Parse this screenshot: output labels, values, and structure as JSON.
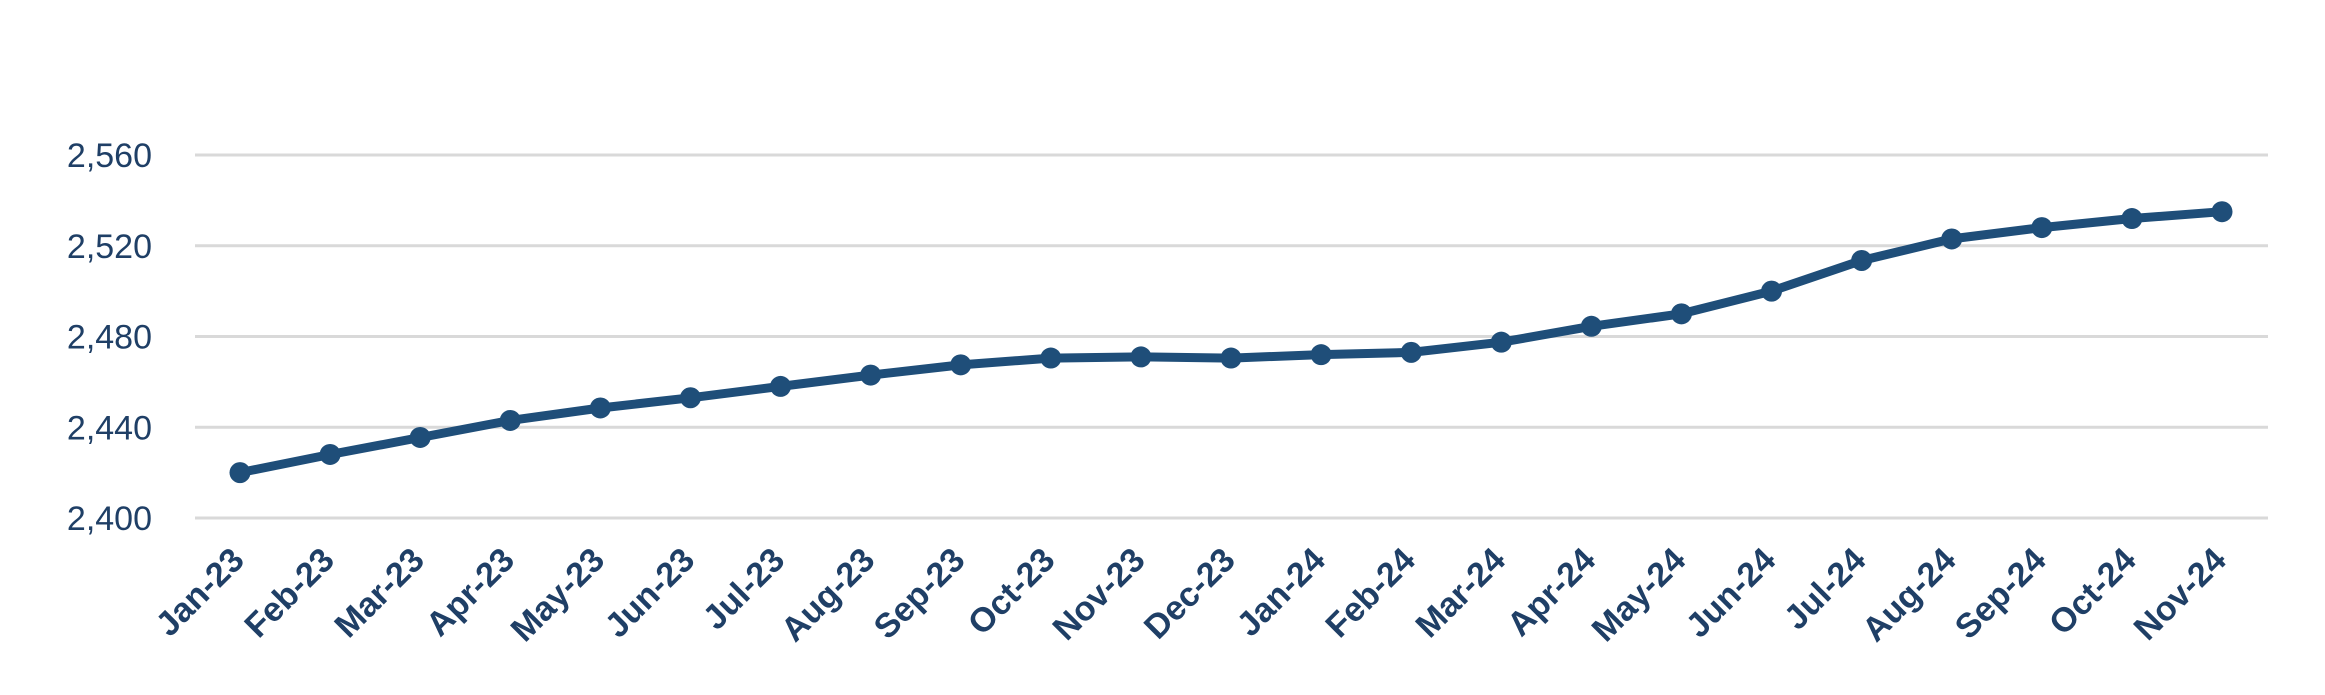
{
  "chart_data": {
    "type": "line",
    "title": "",
    "xlabel": "",
    "ylabel": "",
    "categories": [
      "Jan-23",
      "Feb-23",
      "Mar-23",
      "Apr-23",
      "May-23",
      "Jun-23",
      "Jul-23",
      "Aug-23",
      "Sep-23",
      "Oct-23",
      "Nov-23",
      "Dec-23",
      "Jan-24",
      "Feb-24",
      "Mar-24",
      "Apr-24",
      "May-24",
      "Jun-24",
      "Jul-24",
      "Aug-24",
      "Sep-24",
      "Oct-24",
      "Nov-24"
    ],
    "series": [
      {
        "values": [
          2420,
          2428,
          2435.5,
          2443,
          2448.5,
          2453,
          2458,
          2463,
          2467.5,
          2470.5,
          2471,
          2470.5,
          2472,
          2473,
          2477.5,
          2484.5,
          2490,
          2500,
          2513.5,
          2523,
          2528,
          2532,
          2535
        ]
      }
    ],
    "ylim": [
      2400,
      2560
    ],
    "yticks": [
      "2,400",
      "2,440",
      "2,480",
      "2,520",
      "2,560"
    ],
    "ytick_values": [
      2400,
      2440,
      2480,
      2520,
      2560
    ],
    "grid": true,
    "legend": "none",
    "colors": {
      "line": "#1f4e79",
      "grid": "#d9d9d9",
      "text": "#1f3f66"
    }
  }
}
